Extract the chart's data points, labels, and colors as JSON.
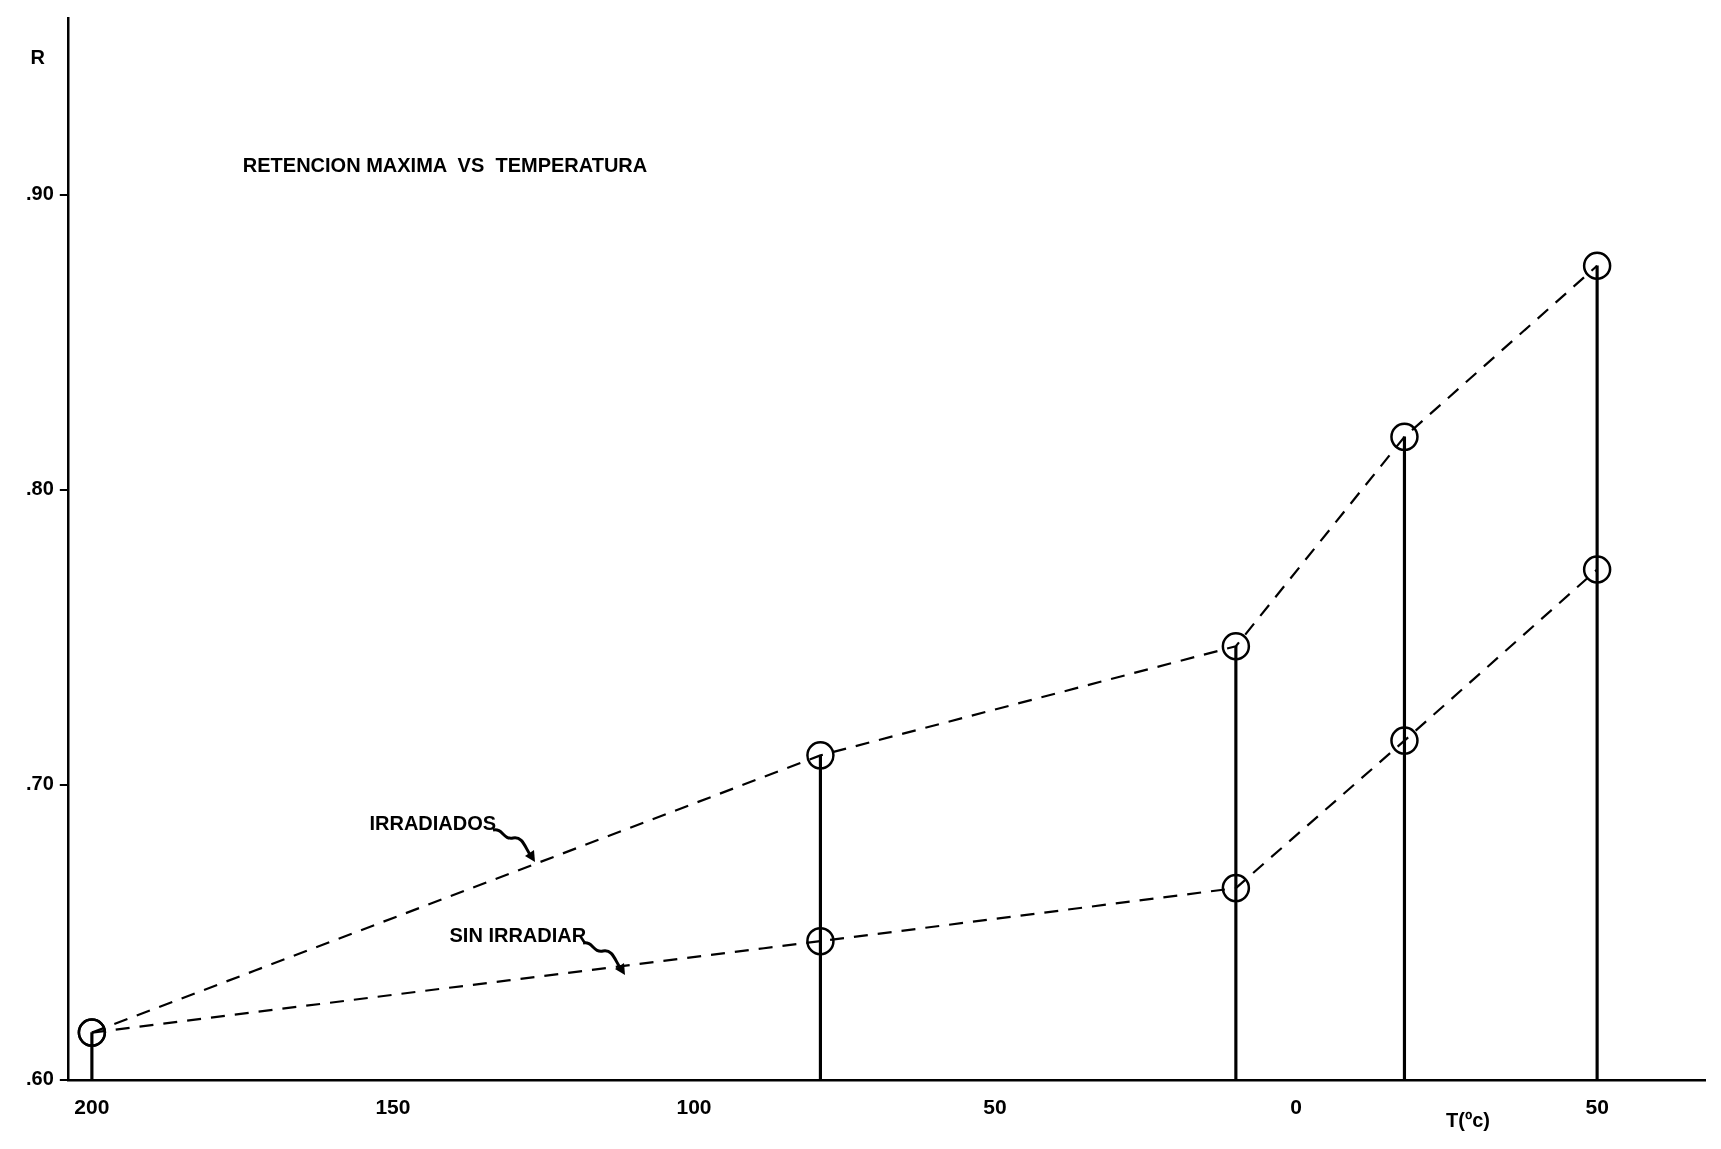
{
  "chart_data": {
    "type": "line",
    "title": "RETENCION MAXIMA  VS  TEMPERATURA",
    "xlabel": "T(ºc)",
    "ylabel": "R",
    "xlim": [
      -204,
      68
    ],
    "xticks": [
      {
        "value": -200,
        "label": "200"
      },
      {
        "value": -150,
        "label": "150"
      },
      {
        "value": -100,
        "label": "100"
      },
      {
        "value": -50,
        "label": "50"
      },
      {
        "value": 0,
        "label": "0"
      },
      {
        "value": 50,
        "label": "50"
      }
    ],
    "ylim": [
      0.6,
      0.96
    ],
    "yticks": [
      {
        "value": 0.6,
        "label": ".60"
      },
      {
        "value": 0.7,
        "label": ".70"
      },
      {
        "value": 0.8,
        "label": ".80"
      },
      {
        "value": 0.9,
        "label": ".90"
      }
    ],
    "x": [
      -200,
      -79,
      -10,
      18,
      50
    ],
    "series": [
      {
        "name": "IRRADIADOS",
        "color": "#000000",
        "values": [
          0.616,
          0.71,
          0.747,
          0.818,
          0.876
        ]
      },
      {
        "name": "SIN IRRADIAR",
        "color": "#000000",
        "values": [
          0.616,
          0.647,
          0.665,
          0.715,
          0.773
        ]
      },
      {
        "type": "bar",
        "color": "#000000",
        "values": [
          0.616,
          0.71,
          0.747,
          0.818,
          0.876
        ]
      }
    ],
    "marker": "circle",
    "line_style": "dashed",
    "grid": false,
    "legend": false
  }
}
